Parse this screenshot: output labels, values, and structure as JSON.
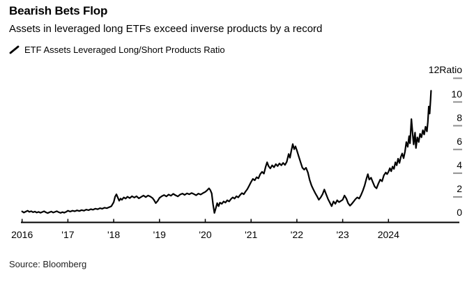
{
  "header": {
    "title": "Bearish Bets Flop",
    "subtitle": "Assets in leveraged long ETFs exceed inverse products by a record"
  },
  "legend": {
    "series_label": "ETF Assets Leveraged Long/Short Products Ratio"
  },
  "source_note": "Source: Bloomberg",
  "colors": {
    "line": "#000000",
    "axis": "#000000",
    "y_tick": "#8f8f8f",
    "text": "#000000",
    "background": "#ffffff"
  },
  "chart_data": {
    "type": "line",
    "title": "Bearish Bets Flop",
    "subtitle": "Assets in leveraged long ETFs exceed inverse products by a record",
    "unit": "Ratio",
    "xlim": [
      2016,
      2025.55
    ],
    "ylim": [
      0,
      12
    ],
    "grid": false,
    "legend_position": "top-left",
    "y_axis_side": "right",
    "x_ticks": [
      {
        "t": 2016,
        "label": "2016"
      },
      {
        "t": 2017,
        "label": "'17"
      },
      {
        "t": 2018,
        "label": "'18"
      },
      {
        "t": 2019,
        "label": "'19"
      },
      {
        "t": 2020,
        "label": "'20"
      },
      {
        "t": 2021,
        "label": "'21"
      },
      {
        "t": 2022,
        "label": "'22"
      },
      {
        "t": 2023,
        "label": "'23"
      },
      {
        "t": 2024,
        "label": "2024"
      }
    ],
    "y_ticks": [
      {
        "v": 0,
        "label": "0"
      },
      {
        "v": 2,
        "label": "2"
      },
      {
        "v": 4,
        "label": "4"
      },
      {
        "v": 6,
        "label": "6"
      },
      {
        "v": 8,
        "label": "8"
      },
      {
        "v": 10,
        "label": "10"
      },
      {
        "v": 12,
        "label": "12Ratio"
      }
    ],
    "series": [
      {
        "name": "ETF Assets Leveraged Long/Short Products Ratio",
        "points": [
          [
            2016.0,
            0.78
          ],
          [
            2016.04,
            0.68
          ],
          [
            2016.08,
            0.76
          ],
          [
            2016.12,
            0.84
          ],
          [
            2016.16,
            0.74
          ],
          [
            2016.2,
            0.8
          ],
          [
            2016.24,
            0.71
          ],
          [
            2016.28,
            0.77
          ],
          [
            2016.32,
            0.68
          ],
          [
            2016.36,
            0.74
          ],
          [
            2016.4,
            0.66
          ],
          [
            2016.44,
            0.73
          ],
          [
            2016.48,
            0.79
          ],
          [
            2016.52,
            0.7
          ],
          [
            2016.56,
            0.64
          ],
          [
            2016.6,
            0.71
          ],
          [
            2016.64,
            0.77
          ],
          [
            2016.68,
            0.68
          ],
          [
            2016.72,
            0.74
          ],
          [
            2016.76,
            0.8
          ],
          [
            2016.8,
            0.71
          ],
          [
            2016.84,
            0.65
          ],
          [
            2016.88,
            0.72
          ],
          [
            2016.92,
            0.67
          ],
          [
            2016.96,
            0.74
          ],
          [
            2017.0,
            0.84
          ],
          [
            2017.05,
            0.76
          ],
          [
            2017.1,
            0.84
          ],
          [
            2017.15,
            0.79
          ],
          [
            2017.2,
            0.87
          ],
          [
            2017.25,
            0.81
          ],
          [
            2017.3,
            0.89
          ],
          [
            2017.35,
            0.84
          ],
          [
            2017.4,
            0.93
          ],
          [
            2017.45,
            0.88
          ],
          [
            2017.5,
            0.97
          ],
          [
            2017.55,
            0.92
          ],
          [
            2017.6,
            1.01
          ],
          [
            2017.65,
            0.96
          ],
          [
            2017.7,
            1.05
          ],
          [
            2017.75,
            1.0
          ],
          [
            2017.8,
            1.09
          ],
          [
            2017.85,
            1.05
          ],
          [
            2017.9,
            1.13
          ],
          [
            2017.95,
            1.22
          ],
          [
            2018.0,
            1.55
          ],
          [
            2018.03,
            2.02
          ],
          [
            2018.06,
            2.22
          ],
          [
            2018.09,
            1.95
          ],
          [
            2018.12,
            1.68
          ],
          [
            2018.15,
            1.86
          ],
          [
            2018.18,
            1.76
          ],
          [
            2018.22,
            1.96
          ],
          [
            2018.26,
            1.86
          ],
          [
            2018.3,
            2.02
          ],
          [
            2018.35,
            1.9
          ],
          [
            2018.4,
            2.06
          ],
          [
            2018.45,
            1.95
          ],
          [
            2018.5,
            2.06
          ],
          [
            2018.55,
            1.88
          ],
          [
            2018.6,
            2.0
          ],
          [
            2018.65,
            2.12
          ],
          [
            2018.7,
            1.98
          ],
          [
            2018.75,
            2.12
          ],
          [
            2018.8,
            2.03
          ],
          [
            2018.85,
            1.9
          ],
          [
            2018.88,
            1.74
          ],
          [
            2018.92,
            1.48
          ],
          [
            2018.96,
            1.66
          ],
          [
            2019.0,
            1.92
          ],
          [
            2019.05,
            2.06
          ],
          [
            2019.1,
            2.16
          ],
          [
            2019.15,
            2.04
          ],
          [
            2019.2,
            2.2
          ],
          [
            2019.25,
            2.1
          ],
          [
            2019.3,
            2.26
          ],
          [
            2019.35,
            2.14
          ],
          [
            2019.4,
            2.04
          ],
          [
            2019.45,
            2.2
          ],
          [
            2019.5,
            2.28
          ],
          [
            2019.55,
            2.17
          ],
          [
            2019.6,
            2.3
          ],
          [
            2019.65,
            2.22
          ],
          [
            2019.7,
            2.33
          ],
          [
            2019.75,
            2.24
          ],
          [
            2019.8,
            2.14
          ],
          [
            2019.85,
            2.28
          ],
          [
            2019.9,
            2.2
          ],
          [
            2019.95,
            2.32
          ],
          [
            2020.0,
            2.42
          ],
          [
            2020.04,
            2.56
          ],
          [
            2020.08,
            2.72
          ],
          [
            2020.11,
            2.58
          ],
          [
            2020.14,
            2.3
          ],
          [
            2020.17,
            1.35
          ],
          [
            2020.2,
            0.65
          ],
          [
            2020.23,
            1.05
          ],
          [
            2020.26,
            1.48
          ],
          [
            2020.29,
            1.22
          ],
          [
            2020.32,
            1.52
          ],
          [
            2020.36,
            1.42
          ],
          [
            2020.4,
            1.62
          ],
          [
            2020.44,
            1.52
          ],
          [
            2020.48,
            1.72
          ],
          [
            2020.52,
            1.62
          ],
          [
            2020.56,
            1.82
          ],
          [
            2020.6,
            1.96
          ],
          [
            2020.64,
            1.86
          ],
          [
            2020.68,
            2.06
          ],
          [
            2020.72,
            1.96
          ],
          [
            2020.76,
            2.16
          ],
          [
            2020.8,
            2.32
          ],
          [
            2020.84,
            2.22
          ],
          [
            2020.88,
            2.46
          ],
          [
            2020.92,
            2.66
          ],
          [
            2020.96,
            2.96
          ],
          [
            2021.0,
            3.26
          ],
          [
            2021.04,
            3.52
          ],
          [
            2021.08,
            3.4
          ],
          [
            2021.12,
            3.66
          ],
          [
            2021.16,
            3.56
          ],
          [
            2021.2,
            3.92
          ],
          [
            2021.24,
            4.12
          ],
          [
            2021.28,
            3.96
          ],
          [
            2021.32,
            4.56
          ],
          [
            2021.35,
            4.92
          ],
          [
            2021.38,
            4.6
          ],
          [
            2021.42,
            4.4
          ],
          [
            2021.46,
            4.66
          ],
          [
            2021.5,
            4.5
          ],
          [
            2021.54,
            4.76
          ],
          [
            2021.58,
            4.6
          ],
          [
            2021.62,
            4.82
          ],
          [
            2021.66,
            4.66
          ],
          [
            2021.7,
            4.86
          ],
          [
            2021.74,
            4.7
          ],
          [
            2021.78,
            4.96
          ],
          [
            2021.82,
            5.62
          ],
          [
            2021.85,
            5.3
          ],
          [
            2021.88,
            5.92
          ],
          [
            2021.91,
            6.45
          ],
          [
            2021.94,
            6.02
          ],
          [
            2021.97,
            6.26
          ],
          [
            2022.0,
            5.92
          ],
          [
            2022.04,
            5.42
          ],
          [
            2022.08,
            4.92
          ],
          [
            2022.12,
            4.46
          ],
          [
            2022.16,
            4.3
          ],
          [
            2022.2,
            4.46
          ],
          [
            2022.24,
            4.06
          ],
          [
            2022.28,
            3.42
          ],
          [
            2022.32,
            2.96
          ],
          [
            2022.36,
            2.62
          ],
          [
            2022.4,
            2.32
          ],
          [
            2022.44,
            2.06
          ],
          [
            2022.48,
            1.76
          ],
          [
            2022.52,
            1.96
          ],
          [
            2022.56,
            2.22
          ],
          [
            2022.6,
            2.62
          ],
          [
            2022.64,
            2.22
          ],
          [
            2022.68,
            1.82
          ],
          [
            2022.72,
            1.52
          ],
          [
            2022.76,
            1.22
          ],
          [
            2022.8,
            1.62
          ],
          [
            2022.84,
            1.42
          ],
          [
            2022.88,
            1.72
          ],
          [
            2022.92,
            1.56
          ],
          [
            2022.96,
            1.66
          ],
          [
            2023.0,
            1.76
          ],
          [
            2023.04,
            2.12
          ],
          [
            2023.08,
            1.86
          ],
          [
            2023.12,
            1.46
          ],
          [
            2023.16,
            1.26
          ],
          [
            2023.2,
            1.42
          ],
          [
            2023.24,
            1.62
          ],
          [
            2023.28,
            1.82
          ],
          [
            2023.32,
            1.96
          ],
          [
            2023.36,
            1.86
          ],
          [
            2023.4,
            2.16
          ],
          [
            2023.44,
            2.52
          ],
          [
            2023.48,
            2.96
          ],
          [
            2023.52,
            3.56
          ],
          [
            2023.55,
            3.92
          ],
          [
            2023.58,
            3.46
          ],
          [
            2023.62,
            3.62
          ],
          [
            2023.66,
            3.22
          ],
          [
            2023.7,
            2.86
          ],
          [
            2023.74,
            2.72
          ],
          [
            2023.78,
            3.12
          ],
          [
            2023.82,
            3.46
          ],
          [
            2023.86,
            3.32
          ],
          [
            2023.9,
            3.82
          ],
          [
            2023.94,
            4.06
          ],
          [
            2023.97,
            3.92
          ],
          [
            2024.0,
            4.12
          ],
          [
            2024.03,
            4.42
          ],
          [
            2024.06,
            4.16
          ],
          [
            2024.09,
            4.56
          ],
          [
            2024.12,
            4.36
          ],
          [
            2024.15,
            4.92
          ],
          [
            2024.18,
            4.66
          ],
          [
            2024.21,
            5.22
          ],
          [
            2024.24,
            4.86
          ],
          [
            2024.27,
            5.36
          ],
          [
            2024.3,
            5.66
          ],
          [
            2024.33,
            5.26
          ],
          [
            2024.36,
            5.82
          ],
          [
            2024.39,
            6.62
          ],
          [
            2024.42,
            6.22
          ],
          [
            2024.45,
            7.12
          ],
          [
            2024.47,
            6.52
          ],
          [
            2024.5,
            8.56
          ],
          [
            2024.53,
            7.22
          ],
          [
            2024.55,
            6.42
          ],
          [
            2024.58,
            7.42
          ],
          [
            2024.6,
            6.12
          ],
          [
            2024.63,
            7.02
          ],
          [
            2024.66,
            6.62
          ],
          [
            2024.69,
            7.32
          ],
          [
            2024.72,
            7.02
          ],
          [
            2024.75,
            7.62
          ],
          [
            2024.78,
            7.26
          ],
          [
            2024.81,
            7.92
          ],
          [
            2024.84,
            7.52
          ],
          [
            2024.86,
            8.32
          ],
          [
            2024.88,
            9.62
          ],
          [
            2024.9,
            9.02
          ],
          [
            2024.92,
            10.2
          ],
          [
            2024.93,
            10.95
          ]
        ]
      }
    ]
  }
}
